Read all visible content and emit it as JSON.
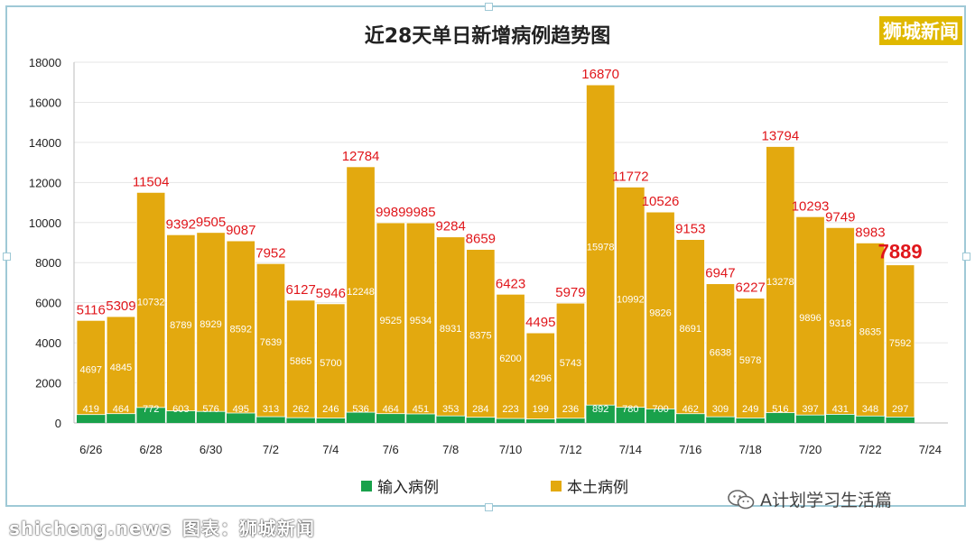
{
  "brand": "狮城新闻",
  "wechat_account": "A计划学习生活篇",
  "watermark": {
    "url": "shicheng.news",
    "caption": "图表：狮城新闻"
  },
  "colors": {
    "local": "#E3A90F",
    "imported": "#19A14B",
    "total_label": "#E0161B",
    "value_label": "#ffffff",
    "frame": "#9fc9d6"
  },
  "chart_data": {
    "type": "bar",
    "stacked": true,
    "title": "近28天单日新增病例趋势图",
    "xlabel": "",
    "ylabel": "",
    "ylim": [
      0,
      18000
    ],
    "yticks": [
      0,
      2000,
      4000,
      6000,
      8000,
      10000,
      12000,
      14000,
      16000,
      18000
    ],
    "grid": true,
    "legend_position": "bottom",
    "categories": [
      "6/26",
      "6/27",
      "6/28",
      "6/29",
      "6/30",
      "7/1",
      "7/2",
      "7/3",
      "7/4",
      "7/5",
      "7/6",
      "7/7",
      "7/8",
      "7/9",
      "7/10",
      "7/11",
      "7/12",
      "7/13",
      "7/14",
      "7/15",
      "7/16",
      "7/17",
      "7/18",
      "7/19",
      "7/20",
      "7/21",
      "7/22",
      "7/23"
    ],
    "xtick_labels": [
      "6/26",
      "6/28",
      "6/30",
      "7/2",
      "7/4",
      "7/6",
      "7/8",
      "7/10",
      "7/12",
      "7/14",
      "7/16",
      "7/18",
      "7/20",
      "7/22",
      "7/24"
    ],
    "series": [
      {
        "name": "输入病例",
        "values": [
          419,
          464,
          772,
          603,
          576,
          495,
          313,
          262,
          246,
          536,
          464,
          451,
          353,
          284,
          223,
          199,
          236,
          892,
          780,
          700,
          462,
          309,
          249,
          516,
          397,
          431,
          348,
          297
        ]
      },
      {
        "name": "本土病例",
        "values": [
          4697,
          4845,
          10732,
          8789,
          8929,
          8592,
          7639,
          5865,
          5700,
          12248,
          9525,
          9534,
          8931,
          8375,
          6200,
          4296,
          5743,
          15978,
          10992,
          9826,
          8691,
          6638,
          5978,
          13278,
          9896,
          9318,
          8635,
          7592
        ]
      }
    ],
    "totals": [
      5116,
      5309,
      11504,
      9392,
      9505,
      9087,
      7952,
      6127,
      5946,
      12784,
      9989,
      9985,
      9284,
      8659,
      6423,
      4495,
      5979,
      16870,
      11772,
      10526,
      9153,
      6947,
      6227,
      13794,
      10293,
      9749,
      8983,
      7889
    ]
  }
}
